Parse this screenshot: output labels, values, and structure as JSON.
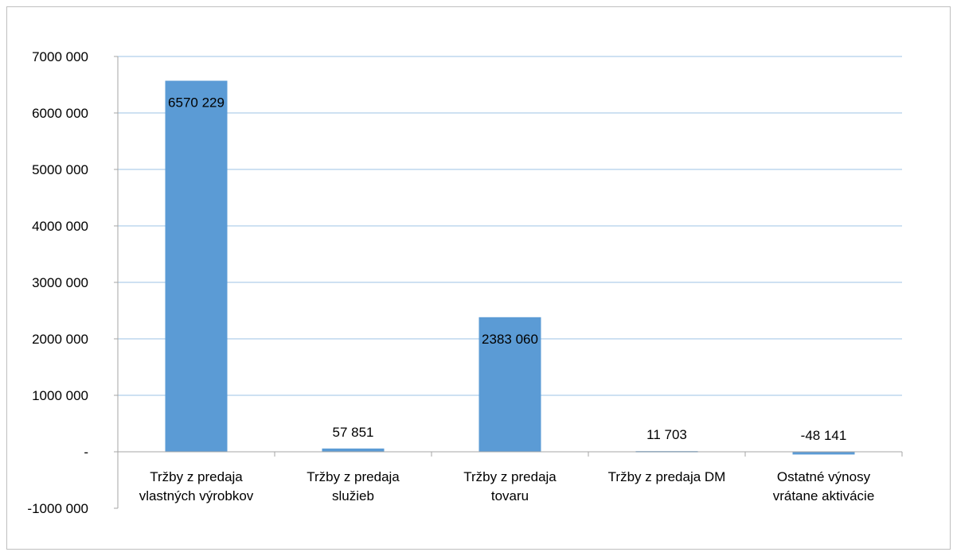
{
  "chart_data": {
    "type": "bar",
    "title": "",
    "xlabel": "",
    "ylabel": "",
    "categories": [
      [
        "Tržby z predaja",
        "vlastných výrobkov"
      ],
      [
        "Tržby z predaja",
        "služieb"
      ],
      [
        "Tržby z predaja",
        "tovaru"
      ],
      [
        "Tržby z predaja DM"
      ],
      [
        "Ostatné výnosy",
        "vrátane aktivácie"
      ]
    ],
    "values": [
      6570229,
      57851,
      2383060,
      11703,
      -48141
    ],
    "data_labels": [
      "6570 229",
      "57 851",
      "2383 060",
      "11 703",
      "-48 141"
    ],
    "ylim": [
      -1000000,
      7000000
    ],
    "yticks": [
      {
        "value": 7000000,
        "label": "7000 000"
      },
      {
        "value": 6000000,
        "label": "6000 000"
      },
      {
        "value": 5000000,
        "label": "5000 000"
      },
      {
        "value": 4000000,
        "label": "4000 000"
      },
      {
        "value": 3000000,
        "label": "3000 000"
      },
      {
        "value": 2000000,
        "label": "2000 000"
      },
      {
        "value": 1000000,
        "label": "1000 000"
      },
      {
        "value": 0,
        "label": "-"
      },
      {
        "value": -1000000,
        "label": "-1000 000"
      }
    ],
    "grid": true,
    "legend": "none",
    "colors": {
      "bar": "#5b9bd5",
      "grid": "#9dc3e6",
      "axis": "#a6a6a6"
    }
  }
}
